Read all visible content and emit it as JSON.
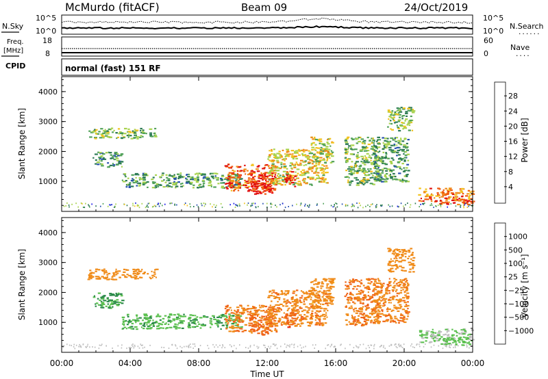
{
  "header": {
    "station": "McMurdo (fitACF)",
    "beam": "Beam 09",
    "date": "24/Oct/2019"
  },
  "sky_panel": {
    "left_label": "N.Sky",
    "left_ticks": [
      "10^5",
      "10^0"
    ],
    "right_ticks": [
      "10^5",
      "10^0"
    ],
    "right_label": "N.Search",
    "right_legend_dots": "......"
  },
  "freq_panel": {
    "left_label_line1": "Freq.",
    "left_label_line2": "[MHz]",
    "left_ticks": [
      "18",
      "8"
    ],
    "right_ticks": [
      "60",
      "0"
    ],
    "right_label": "Nave",
    "right_legend_dots": "...."
  },
  "cpid": {
    "label": "CPID",
    "text": "normal (fast) 151 RF"
  },
  "xaxis": {
    "label": "Time UT",
    "ticks": [
      "00:00",
      "04:00",
      "08:00",
      "12:00",
      "16:00",
      "20:00",
      "00:00"
    ],
    "range_hours": [
      0,
      24
    ]
  },
  "power_panel": {
    "ylabel": "Slant Range [km]",
    "yticks": [
      "1000",
      "2000",
      "3000",
      "4000"
    ],
    "colorbar_label": "Power [dB]",
    "colorbar_ticks": [
      "4",
      "8",
      "12",
      "16",
      "20",
      "24",
      "28"
    ],
    "colorbar_colors": [
      "#1e20e8",
      "#2851b0",
      "#2c7a55",
      "#52a25a",
      "#a8d24d",
      "#f2c21d",
      "#f08c1a",
      "#f05a10",
      "#e01010",
      "#e81010"
    ]
  },
  "velocity_panel": {
    "ylabel": "Slant Range [km]",
    "yticks": [
      "1000",
      "2000",
      "3000",
      "4000"
    ],
    "colorbar_label": "Velocity [m s⁻¹]",
    "colorbar_ticks": [
      "1000",
      "500",
      "100",
      "25",
      "−25",
      "−100",
      "−500",
      "−1000"
    ],
    "colorbar_colors": [
      "#1e3cb4",
      "#2c6aa8",
      "#2c8a4a",
      "#5cc050",
      "#c0c0c0",
      "#f2b81a",
      "#f08c1a",
      "#f06418",
      "#e82a10"
    ]
  },
  "chart_data": {
    "type": "heatmap",
    "x_range": [
      0,
      24
    ],
    "y_range": [
      0,
      4500
    ],
    "y_scale_label": "Slant Range [km]",
    "power_scale": [
      4,
      28
    ],
    "velocity_scale": [
      -1000,
      1000
    ],
    "echo_regions": [
      {
        "t_start": 1.5,
        "t_end": 5.5,
        "r_start": 2450,
        "r_end": 2800,
        "power": 14,
        "velocity": -200
      },
      {
        "t_start": 1.8,
        "t_end": 3.5,
        "r_start": 1500,
        "r_end": 2000,
        "power": 10,
        "velocity": 120
      },
      {
        "t_start": 3.5,
        "t_end": 10.5,
        "r_start": 800,
        "r_end": 1300,
        "power": 12,
        "velocity": 80
      },
      {
        "t_start": 9.5,
        "t_end": 12.5,
        "r_start": 700,
        "r_end": 1600,
        "power": 24,
        "velocity": -300
      },
      {
        "t_start": 11.0,
        "t_end": 12.3,
        "r_start": 600,
        "r_end": 1300,
        "power": 28,
        "velocity": -400
      },
      {
        "t_start": 12.0,
        "t_end": 15.5,
        "r_start": 900,
        "r_end": 2100,
        "power": 18,
        "velocity": -250
      },
      {
        "t_start": 13.0,
        "t_end": 13.6,
        "r_start": 850,
        "r_end": 1350,
        "power": 28,
        "velocity": -450
      },
      {
        "t_start": 14.5,
        "t_end": 15.8,
        "r_start": 1600,
        "r_end": 2500,
        "power": 16,
        "velocity": -200
      },
      {
        "t_start": 16.5,
        "t_end": 18.5,
        "r_start": 900,
        "r_end": 2500,
        "power": 14,
        "velocity": -300
      },
      {
        "t_start": 18.2,
        "t_end": 20.2,
        "r_start": 1000,
        "r_end": 2500,
        "power": 12,
        "velocity": -250
      },
      {
        "t_start": 19.0,
        "t_end": 20.5,
        "r_start": 2700,
        "r_end": 3500,
        "power": 14,
        "velocity": -200
      },
      {
        "t_start": 20.8,
        "t_end": 24.0,
        "r_start": 350,
        "r_end": 800,
        "power": 22,
        "velocity": 25
      },
      {
        "t_start": 22.0,
        "t_end": 24.0,
        "r_start": 250,
        "r_end": 500,
        "power": 26,
        "velocity": 60
      }
    ]
  }
}
